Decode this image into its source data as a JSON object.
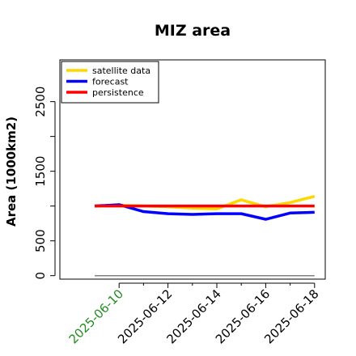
{
  "chart_data": {
    "type": "line",
    "title": "MIZ area",
    "ylabel": "Area (1000km2)",
    "xlabel": "",
    "x": [
      "2025-06-09",
      "2025-06-10",
      "2025-06-11",
      "2025-06-12",
      "2025-06-13",
      "2025-06-14",
      "2025-06-15",
      "2025-06-16",
      "2025-06-17",
      "2025-06-18"
    ],
    "x_tick_labels": [
      "2025-06-10",
      "2025-06-12",
      "2025-06-14",
      "2025-06-16",
      "2025-06-18"
    ],
    "x_tick_colors": [
      "#228b22",
      "#000000",
      "#000000",
      "#000000",
      "#000000"
    ],
    "y_ticks": [
      0,
      500,
      1500,
      2500
    ],
    "ylim": [
      -50,
      3100
    ],
    "grid": false,
    "legend_position": "top-left",
    "series": [
      {
        "name": "satellite data",
        "color": "#ffd700",
        "values": [
          1000,
          1010,
          1000,
          990,
          970,
          960,
          1090,
          990,
          1050,
          1140
        ]
      },
      {
        "name": "forecast",
        "color": "#0000ff",
        "values": [
          1000,
          1020,
          920,
          890,
          880,
          890,
          890,
          810,
          900,
          910
        ]
      },
      {
        "name": "persistence",
        "color": "#ff0000",
        "values": [
          1000,
          1000,
          1000,
          1000,
          1000,
          1000,
          1000,
          1000,
          1000,
          1000
        ]
      }
    ],
    "reference_line": {
      "y": 0,
      "color": "#808080"
    }
  }
}
